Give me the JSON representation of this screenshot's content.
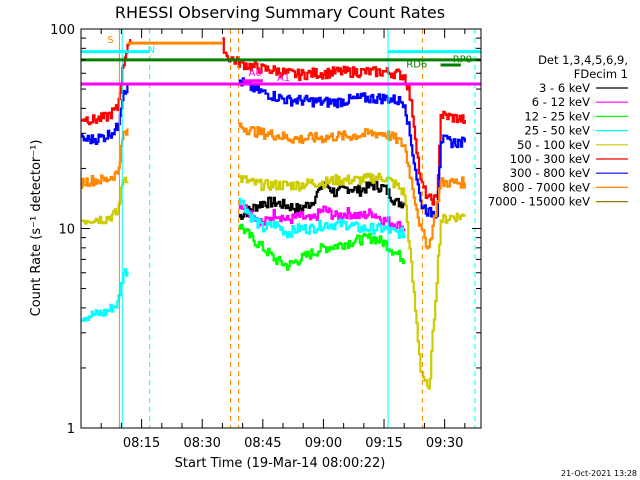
{
  "chart_data": {
    "type": "line",
    "title": "RHESSI Observing Summary Count Rates",
    "xlabel": "Start Time (19-Mar-14 08:00:22)",
    "ylabel": "Count Rate (s⁻¹ detector⁻¹)",
    "ylog": true,
    "ylim": [
      1,
      100
    ],
    "xlim_minutes": [
      0,
      99
    ],
    "x_tick_labels": [
      "08:15",
      "08:30",
      "08:45",
      "09:00",
      "09:15",
      "09:30"
    ],
    "x_tick_minutes": [
      15,
      30,
      45,
      60,
      75,
      90
    ],
    "y_tick_labels": [
      "1",
      "10",
      "100"
    ],
    "y_tick_values": [
      1,
      10,
      100
    ],
    "legend_header": [
      "Det 1,3,4,5,6,9,",
      "FDecim 1"
    ],
    "legend_position": "right",
    "series": [
      {
        "name": "3 - 6 keV",
        "color": "#000000",
        "points": [
          [
            39,
            11.5
          ],
          [
            42,
            12.5
          ],
          [
            45,
            13.5
          ],
          [
            48,
            13.5
          ],
          [
            51,
            13
          ],
          [
            54,
            12.5
          ],
          [
            57,
            13.5
          ],
          [
            60,
            17
          ],
          [
            63,
            15
          ],
          [
            66,
            16
          ],
          [
            69,
            15.5
          ],
          [
            72,
            16.5
          ],
          [
            75,
            16
          ],
          [
            78,
            13.5
          ],
          [
            80,
            13.5
          ]
        ]
      },
      {
        "name": "6 - 12 keV",
        "color": "#ff00ff",
        "points": [
          [
            39,
            13.5
          ],
          [
            42,
            12
          ],
          [
            45,
            10.5
          ],
          [
            48,
            12
          ],
          [
            51,
            11
          ],
          [
            54,
            11.5
          ],
          [
            57,
            11
          ],
          [
            60,
            12.5
          ],
          [
            63,
            11.5
          ],
          [
            66,
            12
          ],
          [
            69,
            11.5
          ],
          [
            72,
            12
          ],
          [
            75,
            11
          ],
          [
            78,
            10.5
          ],
          [
            80,
            10
          ]
        ]
      },
      {
        "name": "12 - 25 keV",
        "color": "#00ff00",
        "points": [
          [
            39,
            10.5
          ],
          [
            42,
            9
          ],
          [
            45,
            8
          ],
          [
            48,
            7
          ],
          [
            51,
            6.5
          ],
          [
            54,
            7
          ],
          [
            57,
            7.5
          ],
          [
            60,
            8
          ],
          [
            63,
            8.2
          ],
          [
            66,
            8.5
          ],
          [
            69,
            8.8
          ],
          [
            72,
            9
          ],
          [
            75,
            8.5
          ],
          [
            78,
            7.5
          ],
          [
            80,
            7
          ]
        ]
      },
      {
        "name": "25 - 50 keV",
        "color": "#00ffff",
        "points": [
          [
            0,
            3.6
          ],
          [
            3,
            3.7
          ],
          [
            6,
            3.8
          ],
          [
            9,
            4.2
          ],
          [
            10.5,
            6
          ],
          [
            39,
            14.5
          ],
          [
            42,
            11.5
          ],
          [
            45,
            10
          ],
          [
            48,
            10.5
          ],
          [
            51,
            9.5
          ],
          [
            54,
            10
          ],
          [
            57,
            10
          ],
          [
            60,
            10.5
          ],
          [
            63,
            10.5
          ],
          [
            66,
            10.5
          ],
          [
            69,
            10
          ],
          [
            72,
            10
          ],
          [
            75,
            10
          ],
          [
            78,
            9.5
          ],
          [
            80,
            9.5
          ]
        ]
      },
      {
        "name": "50 - 100 keV",
        "color": "#cccc00",
        "points": [
          [
            0,
            11
          ],
          [
            3,
            11.2
          ],
          [
            6,
            11.2
          ],
          [
            9,
            12
          ],
          [
            10.5,
            18
          ],
          [
            39,
            18
          ],
          [
            42,
            17
          ],
          [
            45,
            16.5
          ],
          [
            48,
            16.5
          ],
          [
            51,
            16.5
          ],
          [
            54,
            16.5
          ],
          [
            57,
            17
          ],
          [
            60,
            17
          ],
          [
            63,
            17.5
          ],
          [
            66,
            17.5
          ],
          [
            69,
            17.5
          ],
          [
            72,
            18
          ],
          [
            75,
            18
          ],
          [
            78,
            16.5
          ],
          [
            80,
            15
          ],
          [
            84,
            2
          ],
          [
            86,
            1.5
          ],
          [
            89,
            11
          ],
          [
            92,
            11.5
          ],
          [
            95,
            11.5
          ]
        ]
      },
      {
        "name": "100 - 300 keV",
        "color": "#ff0000",
        "points": [
          [
            0,
            36
          ],
          [
            3,
            35
          ],
          [
            6,
            36
          ],
          [
            9,
            40
          ],
          [
            10.5,
            68
          ],
          [
            11.5,
            85
          ],
          [
            35,
            85
          ],
          [
            36,
            73
          ],
          [
            39,
            68
          ],
          [
            42,
            65
          ],
          [
            45,
            63
          ],
          [
            48,
            62
          ],
          [
            51,
            60
          ],
          [
            54,
            59
          ],
          [
            57,
            60
          ],
          [
            60,
            60
          ],
          [
            63,
            61
          ],
          [
            66,
            61
          ],
          [
            69,
            61
          ],
          [
            72,
            61
          ],
          [
            75,
            61
          ],
          [
            78,
            60
          ],
          [
            80,
            58
          ],
          [
            81,
            50
          ],
          [
            82,
            38
          ],
          [
            84,
            17
          ],
          [
            86,
            14
          ],
          [
            88,
            14
          ],
          [
            89,
            37
          ],
          [
            92,
            36
          ],
          [
            95,
            35
          ]
        ]
      },
      {
        "name": "300 - 800 keV",
        "color": "#0000ff",
        "points": [
          [
            0,
            28
          ],
          [
            3,
            28
          ],
          [
            6,
            29
          ],
          [
            9,
            32
          ],
          [
            10.5,
            50
          ],
          [
            39,
            55
          ],
          [
            42,
            51
          ],
          [
            45,
            48
          ],
          [
            48,
            46
          ],
          [
            51,
            44
          ],
          [
            54,
            44
          ],
          [
            57,
            43.5
          ],
          [
            60,
            43
          ],
          [
            63,
            43
          ],
          [
            66,
            44
          ],
          [
            69,
            45
          ],
          [
            72,
            45
          ],
          [
            75,
            45
          ],
          [
            78,
            44
          ],
          [
            80,
            43
          ],
          [
            84,
            13.5
          ],
          [
            86,
            12
          ],
          [
            88,
            12
          ],
          [
            89,
            28
          ],
          [
            92,
            27
          ],
          [
            95,
            27
          ]
        ]
      },
      {
        "name": "800 - 7000 keV",
        "color": "#ff8800",
        "points": [
          [
            0,
            17
          ],
          [
            3,
            17.5
          ],
          [
            6,
            17.5
          ],
          [
            9,
            19
          ],
          [
            10.5,
            30
          ],
          [
            39,
            33
          ],
          [
            42,
            31
          ],
          [
            45,
            30
          ],
          [
            48,
            29.5
          ],
          [
            51,
            28.5
          ],
          [
            54,
            28
          ],
          [
            57,
            28.5
          ],
          [
            60,
            28.5
          ],
          [
            63,
            29
          ],
          [
            66,
            29
          ],
          [
            69,
            29.5
          ],
          [
            72,
            30
          ],
          [
            75,
            30
          ],
          [
            78,
            28
          ],
          [
            80,
            26
          ],
          [
            84,
            10
          ],
          [
            86,
            8
          ],
          [
            89,
            17
          ],
          [
            92,
            17
          ],
          [
            95,
            17
          ]
        ]
      },
      {
        "name": "7000 - 15000 keV",
        "color": "#997700",
        "points": []
      }
    ],
    "annotations": [
      {
        "text": "S",
        "color": "#ff8800",
        "minute": 6.5,
        "value": 85
      },
      {
        "text": "N",
        "color": "#00ffff",
        "minute": 16.5,
        "value": 76
      },
      {
        "text": "A0",
        "color": "#ff00ff",
        "minute": 41.5,
        "value": 58
      },
      {
        "text": "A1",
        "color": "#ff00ff",
        "minute": 48.5,
        "value": 55
      },
      {
        "text": "RD6",
        "color": "#008000",
        "minute": 80.5,
        "value": 64
      },
      {
        "text": "RP0",
        "color": "#008000",
        "minute": 92,
        "value": 68
      }
    ],
    "flag_bars": [
      {
        "label": "S",
        "color": "#ff8800",
        "from": 11.5,
        "to": 35,
        "value": 85
      },
      {
        "label": "N",
        "color": "#00ffff",
        "from": 0,
        "to": 17,
        "value": 77
      },
      {
        "label": "N",
        "color": "#00ffff",
        "from": 76,
        "to": 99,
        "value": 77
      },
      {
        "label": "RD6",
        "color": "#008000",
        "from": 0,
        "to": 99,
        "value": 70
      },
      {
        "label": "RP0",
        "color": "#008000",
        "from": 89,
        "to": 94,
        "value": 66
      },
      {
        "label": "A",
        "color": "#ff00ff",
        "from": 0,
        "to": 99,
        "value": 53
      },
      {
        "label": "A",
        "color": "#ff00ff",
        "from": 40,
        "to": 45,
        "value": 55
      }
    ],
    "vlines": [
      {
        "minute": 9.5,
        "color": "#ff8800",
        "style": "solid"
      },
      {
        "minute": 10.2,
        "color": "#00ffff",
        "style": "solid"
      },
      {
        "minute": 17,
        "color": "#00ffff",
        "style": "dashed"
      },
      {
        "minute": 37,
        "color": "#ff8800",
        "style": "dashed"
      },
      {
        "minute": 39,
        "color": "#ff8800",
        "style": "dashed"
      },
      {
        "minute": 76,
        "color": "#00ffff",
        "style": "solid"
      },
      {
        "minute": 84.5,
        "color": "#ff8800",
        "style": "dashed"
      },
      {
        "minute": 97.5,
        "color": "#00ffff",
        "style": "dashed"
      }
    ],
    "footer_date": "21-Oct-2021 13:28"
  }
}
